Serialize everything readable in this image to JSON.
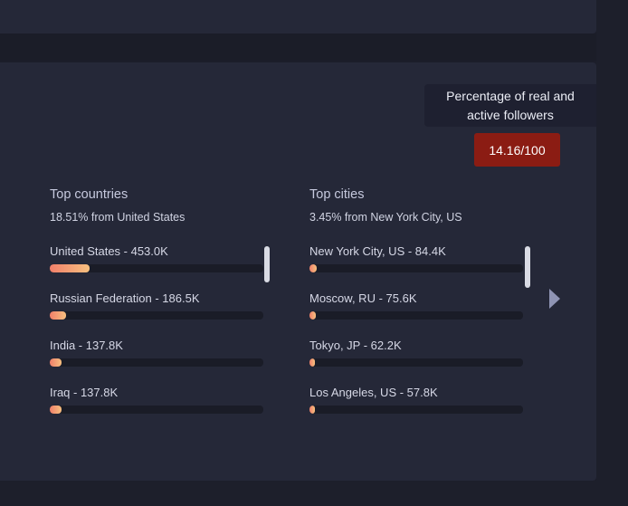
{
  "authenticity": {
    "tooltip_text": "Percentage of real and active followers",
    "score": "14.16/100",
    "badge_color": "#8b1c13"
  },
  "countries": {
    "title": "Top countries",
    "subtitle": "18.51% from United States",
    "rows": [
      {
        "label": "United States - 453.0K",
        "share": 0.1851
      },
      {
        "label": "Russian Federation - 186.5K",
        "share": 0.076
      },
      {
        "label": "India - 137.8K",
        "share": 0.056
      },
      {
        "label": "Iraq - 137.8K",
        "share": 0.056
      }
    ]
  },
  "cities": {
    "title": "Top cities",
    "subtitle": "3.45% from New York City, US",
    "rows": [
      {
        "label": "New York City, US - 84.4K",
        "share": 0.0345
      },
      {
        "label": "Moscow, RU - 75.6K",
        "share": 0.031
      },
      {
        "label": "Tokyo, JP - 62.2K",
        "share": 0.025
      },
      {
        "label": "Los Angeles, US - 57.8K",
        "share": 0.024
      }
    ]
  },
  "colors": {
    "bar_gradient_start": "#f07f6a",
    "bar_gradient_end": "#f7c07f"
  },
  "icons": {
    "next": "chevron-right-icon"
  }
}
